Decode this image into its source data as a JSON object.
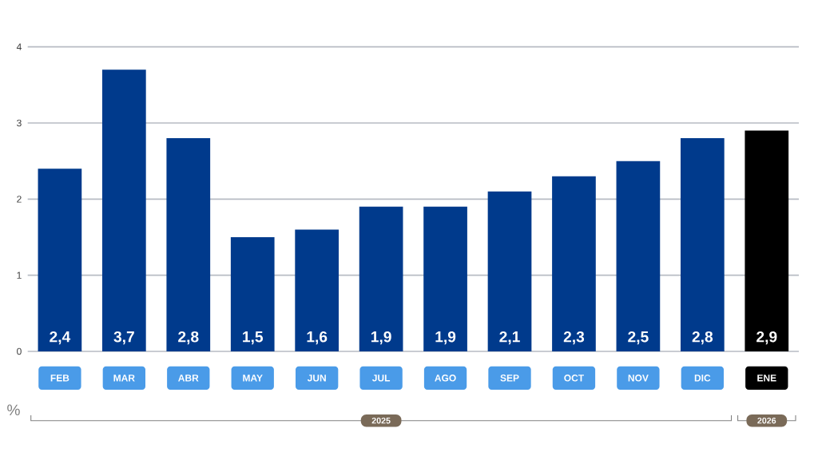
{
  "chart_data": {
    "type": "bar",
    "ylabel": "%",
    "categories": [
      "FEB",
      "MAR",
      "ABR",
      "MAY",
      "JUN",
      "JUL",
      "AGO",
      "SEP",
      "OCT",
      "NOV",
      "DIC",
      "ENE"
    ],
    "values": [
      2.4,
      3.7,
      2.8,
      1.5,
      1.6,
      1.9,
      1.9,
      2.1,
      2.3,
      2.5,
      2.8,
      2.9
    ],
    "colors": [
      "#003a8c",
      "#003a8c",
      "#003a8c",
      "#003a8c",
      "#003a8c",
      "#003a8c",
      "#003a8c",
      "#003a8c",
      "#003a8c",
      "#003a8c",
      "#003a8c",
      "#000000"
    ],
    "value_labels": [
      "2,4",
      "3,7",
      "2,8",
      "1,5",
      "1,6",
      "1,9",
      "1,9",
      "2,1",
      "2,3",
      "2,5",
      "2,8",
      "2,9"
    ],
    "ylim": [
      0,
      4
    ],
    "yticks": [
      0,
      1,
      2,
      3,
      4
    ],
    "grid": "y",
    "annotations": [
      "2025",
      "2026"
    ]
  }
}
